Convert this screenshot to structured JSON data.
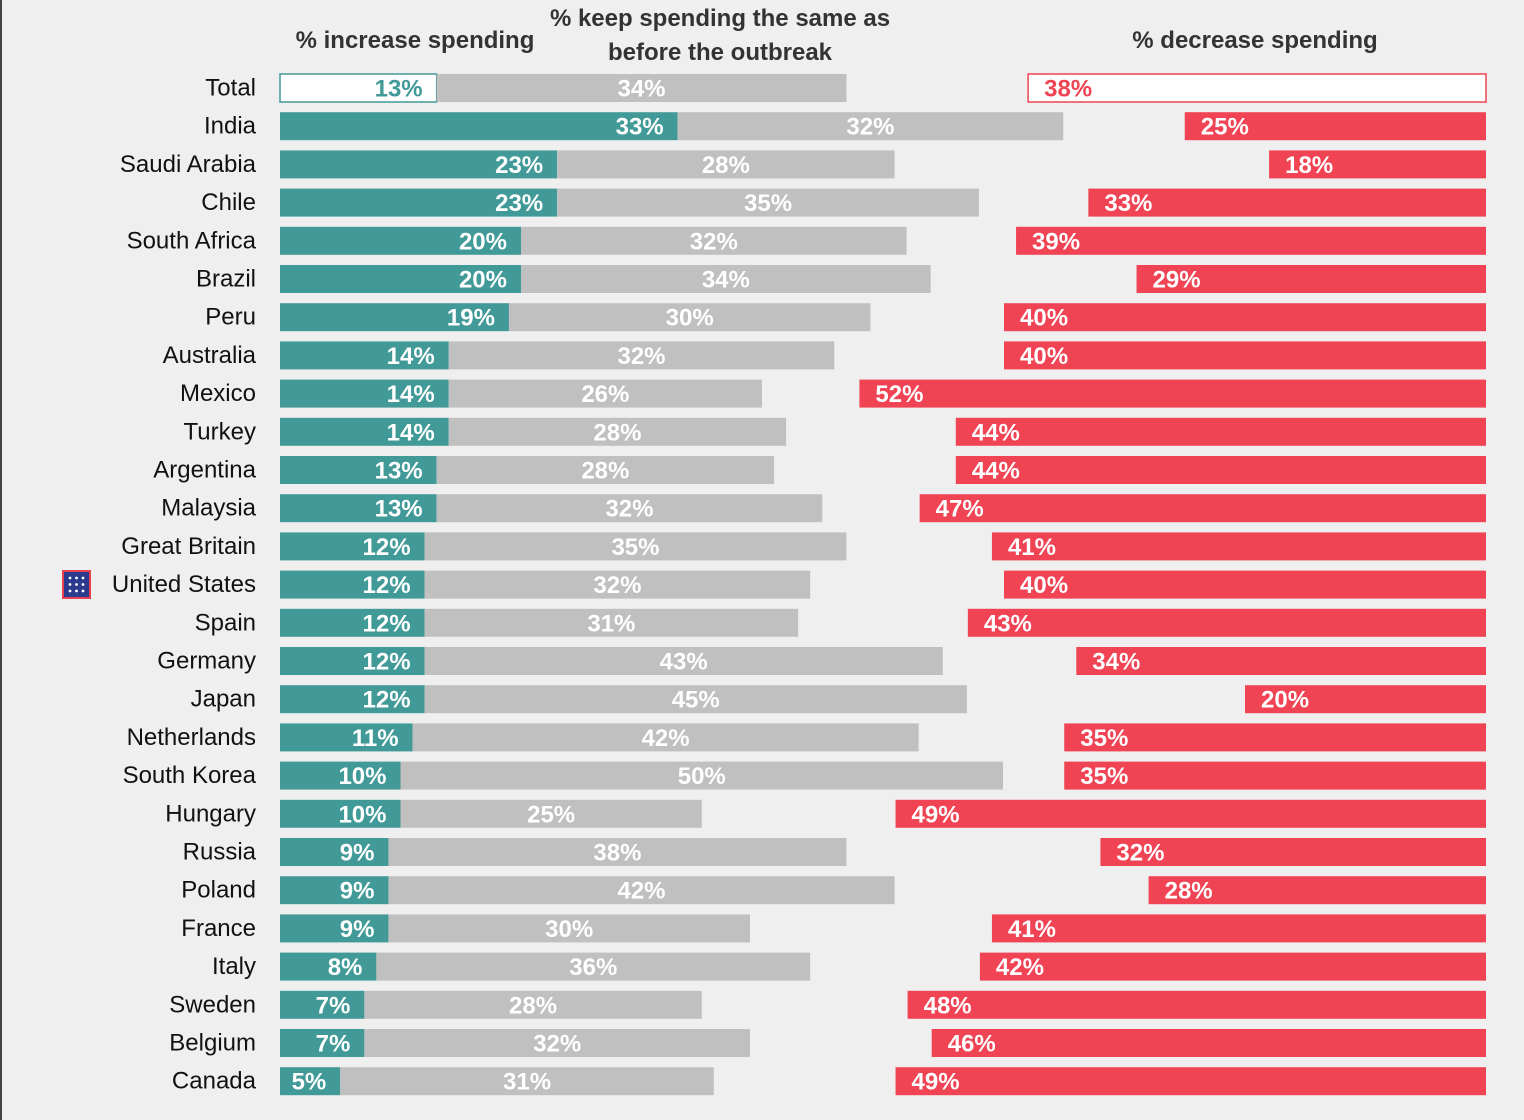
{
  "chart_data": {
    "type": "diverging-bar",
    "categories": [
      "Total",
      "India",
      "Saudi Arabia",
      "Chile",
      "South Africa",
      "Brazil",
      "Peru",
      "Australia",
      "Mexico",
      "Turkey",
      "Argentina",
      "Malaysia",
      "Great Britain",
      "United States",
      "Spain",
      "Germany",
      "Japan",
      "Netherlands",
      "South Korea",
      "Hungary",
      "Russia",
      "Poland",
      "France",
      "Italy",
      "Sweden",
      "Belgium",
      "Canada"
    ],
    "series": [
      {
        "name": "% increase spending",
        "color": "#419a98",
        "values": [
          13,
          33,
          23,
          23,
          20,
          20,
          19,
          14,
          14,
          14,
          13,
          13,
          12,
          12,
          12,
          12,
          12,
          11,
          10,
          10,
          9,
          9,
          9,
          8,
          7,
          7,
          5
        ],
        "value_labels": [
          "13%",
          "33%",
          "23%",
          "23%",
          "20%",
          "20%",
          "19%",
          "14%",
          "14%",
          "14%",
          "13%",
          "13%",
          "12%",
          "12%",
          "12%",
          "12%",
          "12%",
          "11%",
          "10%",
          "10%",
          "9%",
          "9%",
          "9%",
          "8%",
          "7%",
          "7%",
          "5%"
        ]
      },
      {
        "name": "% keep spending the same as before the outbreak",
        "color": "#c0c0c0",
        "values": [
          34,
          32,
          28,
          35,
          32,
          34,
          30,
          32,
          26,
          28,
          28,
          32,
          35,
          32,
          31,
          43,
          45,
          42,
          50,
          25,
          38,
          42,
          30,
          36,
          28,
          32,
          31
        ],
        "value_labels": [
          "34%",
          "32%",
          "28%",
          "35%",
          "32%",
          "34%",
          "30%",
          "32%",
          "26%",
          "28%",
          "28%",
          "32%",
          "35%",
          "32%",
          "31%",
          "43%",
          "45%",
          "42%",
          "50%",
          "25%",
          "38%",
          "42%",
          "30%",
          "36%",
          "28%",
          "32%",
          "31%"
        ]
      },
      {
        "name": "% decrease spending",
        "color": "#f04455",
        "values": [
          38,
          25,
          18,
          33,
          39,
          29,
          40,
          40,
          52,
          44,
          44,
          47,
          41,
          40,
          43,
          34,
          20,
          35,
          35,
          49,
          32,
          28,
          41,
          42,
          48,
          46,
          49
        ],
        "value_labels": [
          "38%",
          "25%",
          "18%",
          "33%",
          "39%",
          "29%",
          "40%",
          "40%",
          "52%",
          "44%",
          "44%",
          "47%",
          "41%",
          "40%",
          "43%",
          "34%",
          "20%",
          "35%",
          "35%",
          "49%",
          "32%",
          "28%",
          "41%",
          "42%",
          "48%",
          "46%",
          "49%"
        ]
      }
    ]
  }
}
